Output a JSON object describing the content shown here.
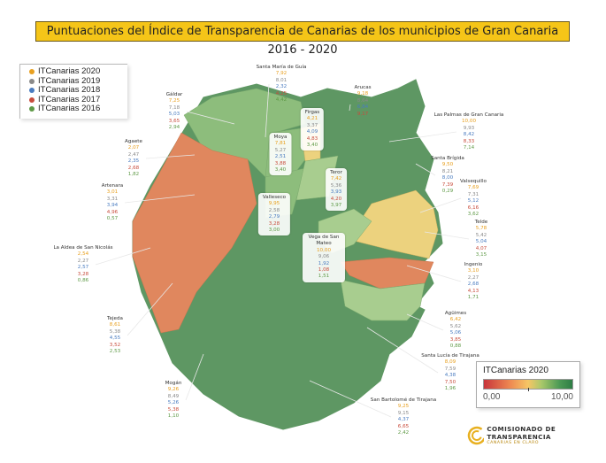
{
  "title": "Puntuaciones del Índice de Transparencia de Canarias de los municipios de Gran Canaria 2016 - 2020",
  "legend": [
    {
      "label": "ITCanarias 2020",
      "color": "#e8a020"
    },
    {
      "label": "ITCanarias 2019",
      "color": "#8a8a8a"
    },
    {
      "label": "ITCanarias 2018",
      "color": "#4a7cc0"
    },
    {
      "label": "ITCanarias 2017",
      "color": "#c84c3c"
    },
    {
      "label": "ITCanarias 2016",
      "color": "#5f9a47"
    }
  ],
  "municipalities": [
    {
      "name": "Santa María de Guía",
      "values": [
        "7,92",
        "8,01",
        "2,32",
        "4,25",
        "4,42"
      ]
    },
    {
      "name": "Gáldar",
      "values": [
        "7,25",
        "7,18",
        "5,03",
        "3,65",
        "2,94"
      ]
    },
    {
      "name": "Firgas",
      "values": [
        "4,21",
        "3,37",
        "4,09",
        "4,83",
        "3,40"
      ]
    },
    {
      "name": "Arucas",
      "values": [
        "9,18",
        "8,64",
        "6,84",
        "9,17"
      ]
    },
    {
      "name": "Las Palmas de Gran Canaria",
      "values": [
        "10,00",
        "9,93",
        "8,42",
        "8,33",
        "7,14"
      ]
    },
    {
      "name": "Santa Brígida",
      "values": [
        "9,50",
        "8,21",
        "8,00",
        "7,39",
        "0,29"
      ]
    },
    {
      "name": "Valsequillo",
      "values": [
        "7,69",
        "7,31",
        "5,12",
        "6,16",
        "3,62"
      ]
    },
    {
      "name": "Telde",
      "values": [
        "5,78",
        "5,42",
        "5,04",
        "4,07",
        "3,15"
      ]
    },
    {
      "name": "Ingenio",
      "values": [
        "3,10",
        "2,27",
        "2,68",
        "4,13",
        "1,71"
      ]
    },
    {
      "name": "Agüimes",
      "values": [
        "6,42",
        "5,62",
        "5,06",
        "3,85",
        "0,88"
      ]
    },
    {
      "name": "Santa Lucía de Tirajana",
      "values": [
        "8,09",
        "7,59",
        "4,38",
        "7,50",
        "1,96"
      ]
    },
    {
      "name": "San Bartolomé de Tirajana",
      "values": [
        "9,25",
        "9,15",
        "4,37",
        "6,65",
        "2,42"
      ]
    },
    {
      "name": "Mogán",
      "values": [
        "9,26",
        "8,49",
        "5,26",
        "5,38",
        "1,10"
      ]
    },
    {
      "name": "Tejeda",
      "values": [
        "8,61",
        "5,38",
        "4,55",
        "3,52",
        "2,53"
      ]
    },
    {
      "name": "La Aldea de San Nicolás",
      "values": [
        "2,54",
        "2,27",
        "2,57",
        "3,28",
        "0,86"
      ]
    },
    {
      "name": "Artenara",
      "values": [
        "3,01",
        "3,31",
        "3,94",
        "4,96",
        "0,57"
      ]
    },
    {
      "name": "Agaete",
      "values": [
        "2,07",
        "2,47",
        "2,35",
        "2,68",
        "1,82"
      ]
    },
    {
      "name": "Moya",
      "values": [
        "7,81",
        "5,27",
        "2,51",
        "3,88",
        "3,40"
      ]
    },
    {
      "name": "Teror",
      "values": [
        "7,42",
        "5,36",
        "3,93",
        "4,20",
        "3,97"
      ]
    },
    {
      "name": "Valleseco",
      "values": [
        "9,95",
        "2,58",
        "2,79",
        "3,28",
        "3,00"
      ]
    },
    {
      "name": "Vega de San Mateo",
      "values": [
        "10,00",
        "9,06",
        "1,92",
        "1,08",
        "1,51"
      ]
    }
  ],
  "color_scale": {
    "title": "ITCanarias 2020",
    "min": "0,00",
    "max": "10,00",
    "colors": [
      "#c8353b",
      "#f6c665",
      "#2e7d45"
    ]
  },
  "logo": {
    "line1": "COMISIONADO DE TRANSPARENCIA",
    "line2": "CANARIAS EN CLARO"
  }
}
